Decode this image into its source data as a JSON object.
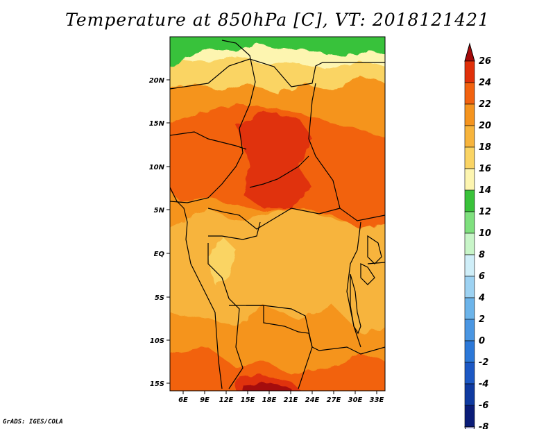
{
  "title": "Temperature at 850hPa [C], VT: 2018121421",
  "credit": "GrADS: IGES/COLA",
  "map": {
    "lon_labels": [
      "6E",
      "9E",
      "12E",
      "15E",
      "18E",
      "21E",
      "24E",
      "27E",
      "30E",
      "33E"
    ],
    "lat_labels": [
      "20N",
      "15N",
      "10N",
      "5N",
      "EQ",
      "5S",
      "10S",
      "15S"
    ]
  },
  "colorbar": {
    "labels": [
      "26",
      "24",
      "22",
      "20",
      "18",
      "16",
      "14",
      "12",
      "10",
      "8",
      "6",
      "4",
      "2",
      "0",
      "-2",
      "-4",
      "-6",
      "-8"
    ],
    "colors": [
      "#a50a0a",
      "#e0300a",
      "#f2620f",
      "#f5941e",
      "#f7b43c",
      "#fad464",
      "#fdf5b0",
      "#39c23a",
      "#7fe07e",
      "#c8f5c8",
      "#cfeef8",
      "#9dd2f2",
      "#6cb4ea",
      "#4a96e2",
      "#2c78d8",
      "#1c58c4",
      "#0f3aa0",
      "#0a1c78",
      "#e2e2ff"
    ]
  }
}
